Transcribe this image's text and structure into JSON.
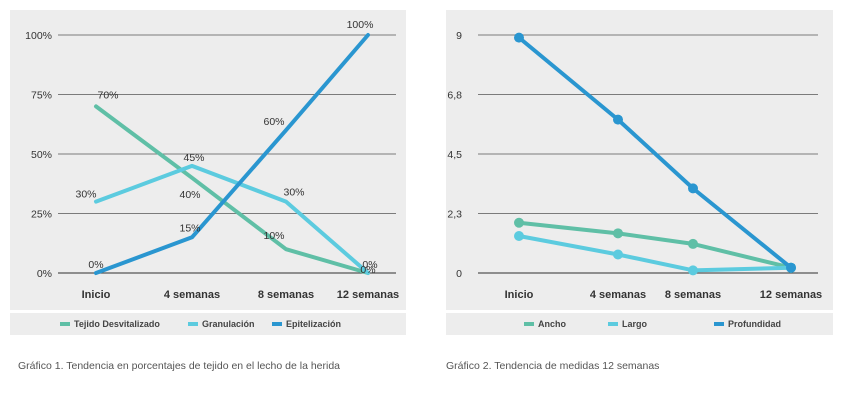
{
  "chart_data": [
    {
      "type": "line",
      "categories": [
        "Inicio",
        "4 semanas",
        "8 semanas",
        "12 semanas"
      ],
      "y_ticks": [
        "0%",
        "25%",
        "50%",
        "75%",
        "100%"
      ],
      "ylim": [
        0,
        100
      ],
      "grid": true,
      "legend_position": "bottom",
      "series": [
        {
          "name": "Tejido Desvitalizado",
          "color": "#5fbfa6",
          "values": [
            70,
            40,
            10,
            0
          ],
          "labels": [
            "70%",
            "40%",
            "10%",
            "0%"
          ]
        },
        {
          "name": "Granulación",
          "color": "#5ccbdf",
          "values": [
            30,
            45,
            30,
            0
          ],
          "labels": [
            "30%",
            "45%",
            "30%",
            "0%"
          ]
        },
        {
          "name": "Epitelización",
          "color": "#2a96d0",
          "values": [
            0,
            15,
            60,
            100
          ],
          "labels": [
            "0%",
            "15%",
            "60%",
            "100%"
          ]
        }
      ],
      "caption": "Gráfico 1. Tendencia en porcentajes de tejido en el lecho de la herida"
    },
    {
      "type": "line",
      "categories": [
        "Inicio",
        "4 semanas",
        "8 semanas",
        "12 semanas"
      ],
      "y_ticks": [
        "0",
        "2,3",
        "4,5",
        "6,8",
        "9"
      ],
      "ylim": [
        0,
        9
      ],
      "grid": true,
      "legend_position": "bottom",
      "series": [
        {
          "name": "Ancho",
          "color": "#5fbfa6",
          "values": [
            1.9,
            1.5,
            1.1,
            0.2
          ]
        },
        {
          "name": "Largo",
          "color": "#5ccbdf",
          "values": [
            1.4,
            0.7,
            0.1,
            0.2
          ]
        },
        {
          "name": "Profundidad",
          "color": "#2a96d0",
          "values": [
            8.9,
            5.8,
            3.2,
            0.2
          ]
        }
      ],
      "caption": "Gráfico 2. Tendencia de medidas 12 semanas"
    }
  ]
}
